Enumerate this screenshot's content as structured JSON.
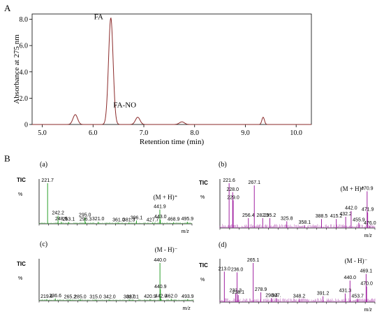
{
  "panel_labels": {
    "a": "A",
    "b": "B"
  },
  "chart_data": [
    {
      "id": "A",
      "type": "line",
      "xlabel": "Retention time (min)",
      "ylabel": "Absorbance at 275 nm",
      "xlim": [
        4.8,
        10.3
      ],
      "ylim": [
        0,
        8.4
      ],
      "x_ticks": [
        "5.0",
        "6.0",
        "7.0",
        "8.0",
        "9.0",
        "10.0"
      ],
      "y_ticks": [
        "0",
        "2.0",
        "4.0",
        "6.0",
        "8.0"
      ],
      "grid": false,
      "color": "#8b2a2a",
      "peaks": [
        {
          "x": 5.65,
          "y": 0.75,
          "w": 0.045
        },
        {
          "x": 6.35,
          "y": 8.1,
          "w": 0.045
        },
        {
          "x": 6.88,
          "y": 0.55,
          "w": 0.045
        },
        {
          "x": 7.75,
          "y": 0.2,
          "w": 0.05
        },
        {
          "x": 9.35,
          "y": 0.55,
          "w": 0.025
        }
      ],
      "annotations": [
        {
          "text": "FA",
          "x": 6.2,
          "y": 8.0
        },
        {
          "text": "FA-NO",
          "x": 6.85,
          "y": 1.3
        }
      ]
    },
    {
      "id": "B-a",
      "type": "bar",
      "panel_label": "(a)",
      "tic_label": "TIC",
      "y_axis_label": "%",
      "xlabel": "m/z",
      "color": "#2ca02c",
      "xlim": [
        205,
        505
      ],
      "ylim": [
        0,
        100
      ],
      "adduct_label": "(M + H)⁺",
      "peaks": [
        {
          "mz": 221.7,
          "i": 100,
          "label": "221.7"
        },
        {
          "mz": 242.2,
          "i": 20,
          "label": "242.2"
        },
        {
          "mz": 248.5,
          "i": 5,
          "label": "248.5"
        },
        {
          "mz": 263.1,
          "i": 4,
          "label": "263.1"
        },
        {
          "mz": 296.3,
          "i": 4,
          "label": "296.3"
        },
        {
          "mz": 295.0,
          "i": 15,
          "label": "295.0"
        },
        {
          "mz": 321.0,
          "i": 5,
          "label": "321.0"
        },
        {
          "mz": 361.0,
          "i": 3,
          "label": "361.0"
        },
        {
          "mz": 381.3,
          "i": 3,
          "label": "381.3"
        },
        {
          "mz": 396.1,
          "i": 8,
          "label": "396.1"
        },
        {
          "mz": 427.7,
          "i": 3,
          "label": "427.7"
        },
        {
          "mz": 441.9,
          "i": 35,
          "label": "441.9"
        },
        {
          "mz": 443.0,
          "i": 10,
          "label": "443.0"
        },
        {
          "mz": 468.9,
          "i": 4,
          "label": "468.9"
        },
        {
          "mz": 495.9,
          "i": 5,
          "label": "495.9"
        }
      ]
    },
    {
      "id": "B-b",
      "type": "bar",
      "panel_label": "(b)",
      "tic_label": "TIC",
      "y_axis_label": "%",
      "xlabel": "m/z",
      "color": "#a020a0",
      "xlim": [
        205,
        485
      ],
      "ylim": [
        0,
        100
      ],
      "adduct_label": "(M + H)⁺",
      "peaks": [
        {
          "mz": 221.6,
          "i": 100,
          "label": "221.6"
        },
        {
          "mz": 228.0,
          "i": 80,
          "label": "228.0"
        },
        {
          "mz": 229.0,
          "i": 62,
          "label": "229.0"
        },
        {
          "mz": 256.4,
          "i": 22,
          "label": "256.4"
        },
        {
          "mz": 267.1,
          "i": 95,
          "label": "267.1"
        },
        {
          "mz": 282.3,
          "i": 22,
          "label": "282.3"
        },
        {
          "mz": 295.2,
          "i": 22,
          "label": "295.2"
        },
        {
          "mz": 325.8,
          "i": 15,
          "label": "325.8"
        },
        {
          "mz": 358.1,
          "i": 6,
          "label": "358.1"
        },
        {
          "mz": 388.5,
          "i": 20,
          "label": "388.5"
        },
        {
          "mz": 415.2,
          "i": 20,
          "label": "415.2"
        },
        {
          "mz": 432.2,
          "i": 25,
          "label": "432.2"
        },
        {
          "mz": 442.0,
          "i": 38,
          "label": "442.0"
        },
        {
          "mz": 455.9,
          "i": 12,
          "label": "455.9"
        },
        {
          "mz": 470.9,
          "i": 82,
          "label": "470.9"
        },
        {
          "mz": 471.9,
          "i": 35,
          "label": "471.9"
        },
        {
          "mz": 476.0,
          "i": 5,
          "label": "476.0"
        }
      ]
    },
    {
      "id": "B-c",
      "type": "bar",
      "panel_label": "(c)",
      "tic_label": "TIC",
      "y_axis_label": "%",
      "xlabel": "m/z",
      "color": "#2ca02c",
      "xlim": [
        205,
        505
      ],
      "ylim": [
        0,
        100
      ],
      "adduct_label": "(M - H)⁻",
      "peaks": [
        {
          "mz": 219.8,
          "i": 4,
          "label": "219.8"
        },
        {
          "mz": 236.6,
          "i": 6,
          "label": "236.6"
        },
        {
          "mz": 265.2,
          "i": 3,
          "label": "265.2"
        },
        {
          "mz": 285.0,
          "i": 3,
          "label": "285.0"
        },
        {
          "mz": 315.0,
          "i": 3,
          "label": "315.0"
        },
        {
          "mz": 342.0,
          "i": 3,
          "label": "342.0"
        },
        {
          "mz": 381.0,
          "i": 3,
          "label": "381.0"
        },
        {
          "mz": 387.1,
          "i": 3,
          "label": "387.1"
        },
        {
          "mz": 420.9,
          "i": 4,
          "label": "420.9"
        },
        {
          "mz": 440.0,
          "i": 100,
          "label": "440.0"
        },
        {
          "mz": 440.9,
          "i": 30,
          "label": "440.9"
        },
        {
          "mz": 442.0,
          "i": 5,
          "label": "442.0"
        },
        {
          "mz": 462.0,
          "i": 5,
          "label": "462.0"
        },
        {
          "mz": 493.9,
          "i": 4,
          "label": "493.9"
        }
      ]
    },
    {
      "id": "B-d",
      "type": "bar",
      "panel_label": "(d)",
      "tic_label": "TIC",
      "y_axis_label": "%",
      "xlabel": "m/z",
      "color": "#a020a0",
      "xlim": [
        205,
        485
      ],
      "ylim": [
        0,
        100
      ],
      "adduct_label": "(M - H)⁻",
      "peaks": [
        {
          "mz": 213.0,
          "i": 78,
          "label": "213.0"
        },
        {
          "mz": 233.3,
          "i": 22,
          "label": "233.3"
        },
        {
          "mz": 236.0,
          "i": 76,
          "label": "236.0"
        },
        {
          "mz": 238.1,
          "i": 18,
          "label": "238.1"
        },
        {
          "mz": 265.1,
          "i": 100,
          "label": "265.1"
        },
        {
          "mz": 278.9,
          "i": 25,
          "label": "278.9"
        },
        {
          "mz": 298.4,
          "i": 10,
          "label": "298.4"
        },
        {
          "mz": 307.0,
          "i": 10,
          "label": "307."
        },
        {
          "mz": 348.2,
          "i": 8,
          "label": "348.2"
        },
        {
          "mz": 391.2,
          "i": 15,
          "label": "391.2"
        },
        {
          "mz": 431.3,
          "i": 22,
          "label": "431.3"
        },
        {
          "mz": 440.0,
          "i": 55,
          "label": "440.0"
        },
        {
          "mz": 453.7,
          "i": 8,
          "label": "453.7"
        },
        {
          "mz": 469.1,
          "i": 72,
          "label": "469.1"
        },
        {
          "mz": 470.0,
          "i": 40,
          "label": "470.0"
        }
      ]
    }
  ]
}
